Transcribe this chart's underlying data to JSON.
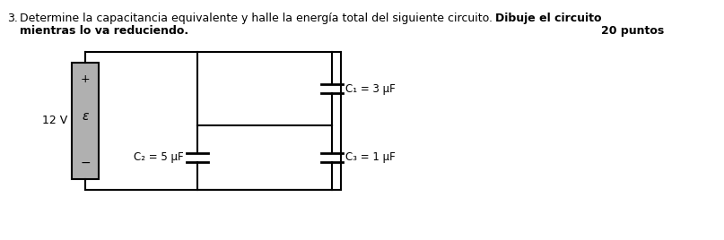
{
  "title_line1": "Determine la capacitancia equivalente y halle la energía total del siguiente circuito. ",
  "title_bold1": "Dibuje el circuito",
  "title_line2_normal": "mientras lo va reduciendo.",
  "title_right": "20 puntos",
  "problem_number": "3.",
  "voltage_label": "12 V",
  "epsilon_label": "ε",
  "plus_label": "+",
  "minus_label": "−",
  "C1_label": "C₁ = 3 μF",
  "C2_label": "C₂ = 5 μF",
  "C3_label": "C₃ = 1 μF",
  "bg_color": "#ffffff",
  "text_color": "#000000",
  "battery_color": "#a0a0a0",
  "line_color": "#000000"
}
